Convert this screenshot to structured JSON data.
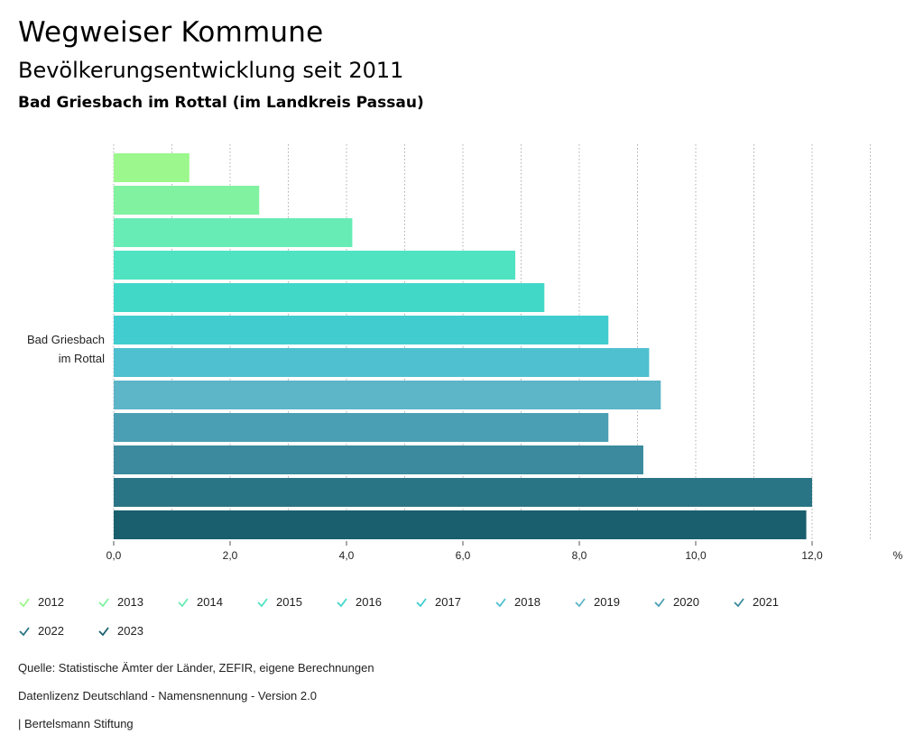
{
  "header": {
    "title": "Wegweiser Kommune",
    "subtitle": "Bevölkerungsentwicklung seit 2011",
    "region": "Bad Griesbach im Rottal (im Landkreis Passau)"
  },
  "chart_data": {
    "type": "bar",
    "orientation": "horizontal",
    "category_label_lines": [
      "Bad Griesbach",
      "im Rottal"
    ],
    "unit": "%",
    "xlim": [
      0,
      13.5
    ],
    "xticks": [
      0,
      2,
      4,
      6,
      8,
      10,
      12
    ],
    "xtick_labels": [
      "0,0",
      "2,0",
      "4,0",
      "6,0",
      "8,0",
      "10,0",
      "12,0"
    ],
    "grid": "vertical dotted",
    "series": [
      {
        "name": "2012",
        "value": 1.3,
        "color": "#9cf78c"
      },
      {
        "name": "2013",
        "value": 2.5,
        "color": "#80f2a0"
      },
      {
        "name": "2014",
        "value": 4.1,
        "color": "#66ecb4"
      },
      {
        "name": "2015",
        "value": 6.9,
        "color": "#50e3c2"
      },
      {
        "name": "2016",
        "value": 7.4,
        "color": "#42d8c8"
      },
      {
        "name": "2017",
        "value": 8.5,
        "color": "#41cdcf"
      },
      {
        "name": "2018",
        "value": 9.2,
        "color": "#4ec0d0"
      },
      {
        "name": "2019",
        "value": 9.4,
        "color": "#5db5c8"
      },
      {
        "name": "2020",
        "value": 8.5,
        "color": "#4b9fb4"
      },
      {
        "name": "2021",
        "value": 9.1,
        "color": "#3b8a9d"
      },
      {
        "name": "2022",
        "value": 12.0,
        "color": "#2a7585"
      },
      {
        "name": "2023",
        "value": 11.9,
        "color": "#1a5f6e"
      }
    ]
  },
  "source": {
    "line1": "Quelle: Statistische Ämter der Länder, ZEFIR, eigene Berechnungen",
    "line2": "Datenlizenz Deutschland - Namensnennung - Version 2.0",
    "line3": "| Bertelsmann Stiftung"
  }
}
